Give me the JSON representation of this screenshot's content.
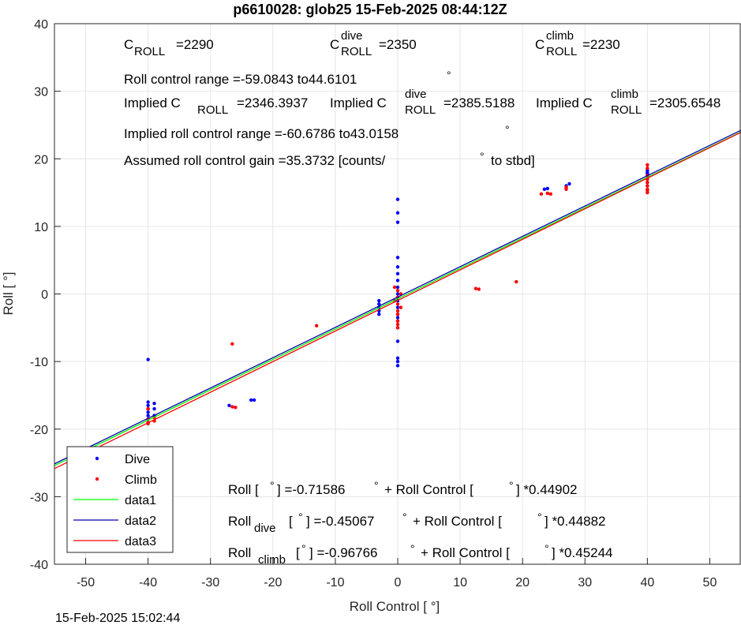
{
  "chart_data": {
    "type": "scatter",
    "title": "p6610028: glob25 15-Feb-2025 08:44:12Z",
    "x_label": "Roll Control [ °]",
    "y_label": "Roll [ °]",
    "footer": "15-Feb-2025 15:02:44",
    "xlim": [
      -55,
      55
    ],
    "ylim": [
      -40,
      40
    ],
    "xticks": [
      -50,
      -40,
      -30,
      -20,
      -10,
      0,
      10,
      20,
      30,
      40,
      50
    ],
    "yticks": [
      -40,
      -30,
      -20,
      -10,
      0,
      10,
      20,
      30,
      40
    ],
    "grid": true,
    "legend": "lower left",
    "series": [
      {
        "name": "Dive",
        "color": "#0000ff",
        "style": "marker",
        "x": [
          -40,
          -40,
          -40,
          -40,
          -40,
          -40,
          -40,
          -39,
          -39,
          -39,
          -27,
          -23.5,
          -23,
          -3,
          -3,
          -3,
          -3,
          -3,
          0,
          0,
          0,
          0,
          0,
          0,
          0,
          0,
          0,
          0,
          0,
          0,
          0,
          0,
          0,
          0,
          0,
          0,
          0,
          23.5,
          24,
          27,
          27.5,
          40,
          40,
          40,
          40,
          40,
          40,
          40
        ],
        "values": [
          -9.7,
          -16,
          -16.5,
          -17,
          -17.5,
          -18,
          -18.5,
          -16.2,
          -17,
          -18,
          -16.5,
          -15.7,
          -15.7,
          -1,
          -1.5,
          -2,
          -2.5,
          -3,
          14,
          12,
          10.6,
          5.4,
          4,
          3,
          2,
          1,
          0,
          -1,
          -2,
          -3,
          -3.5,
          -4,
          -5,
          -7,
          -9.5,
          -10,
          -10.6,
          15.5,
          15.6,
          16,
          16.3,
          18.3,
          18,
          17.5,
          17,
          16.5,
          16,
          17.8
        ]
      },
      {
        "name": "Climb",
        "color": "#ff0000",
        "style": "marker",
        "x": [
          -40,
          -40,
          -40,
          -40,
          -39,
          -39,
          -26.5,
          -26.5,
          -26,
          -13,
          -0.5,
          0,
          0.5,
          0,
          -0.5,
          0,
          0.5,
          0,
          0,
          0,
          0,
          0,
          12.5,
          13,
          19,
          23,
          24,
          24.5,
          27,
          27,
          40,
          40,
          40,
          40,
          40,
          40,
          40,
          40,
          40
        ],
        "values": [
          -19.2,
          -19,
          -18.5,
          -17,
          -18.8,
          -18.3,
          -7.4,
          -16.7,
          -16.8,
          -4.7,
          1,
          0.5,
          0,
          -0.5,
          -1,
          -1.5,
          -2,
          -2.5,
          -3,
          -4,
          -4.5,
          -5,
          0.8,
          0.7,
          1.8,
          14.8,
          14.9,
          14.8,
          15.5,
          15.8,
          19.1,
          18.6,
          17.5,
          17,
          16.5,
          16,
          15.5,
          15,
          15.3
        ]
      },
      {
        "name": "data1",
        "color": "#00ff00",
        "style": "line",
        "x": [
          -55,
          55
        ],
        "values": [
          -25.41,
          23.98
        ]
      },
      {
        "name": "data2",
        "color": "#0000aa",
        "style": "line",
        "x": [
          -55,
          55
        ],
        "values": [
          -25.14,
          24.23
        ]
      },
      {
        "name": "data3",
        "color": "#ff0000",
        "style": "line",
        "x": [
          -55,
          55
        ],
        "values": [
          -25.85,
          23.92
        ]
      }
    ],
    "annotations": [
      [
        {
          "t": "C"
        },
        {
          "sub": "ROLL"
        },
        {
          "t": "=2290"
        }
      ],
      [
        {
          "t": "C"
        },
        {
          "sup": "dive",
          "sub": "ROLL"
        },
        {
          "t": "=2350"
        }
      ],
      [
        {
          "t": "C"
        },
        {
          "sup": "climb",
          "sub": "ROLL"
        },
        {
          "t": "=2230"
        }
      ],
      [
        {
          "t": "Roll control range =-59.0843 to44.6101"
        },
        {
          "deg": "°"
        }
      ],
      [
        {
          "t": "Implied C"
        },
        {
          "sub": "ROLL"
        },
        {
          "t": "=2346.3937"
        }
      ],
      [
        {
          "t": "Implied C"
        },
        {
          "sup": "dive",
          "sub": "ROLL"
        },
        {
          "t": "=2385.5188"
        }
      ],
      [
        {
          "t": "Implied C"
        },
        {
          "sup": "climb",
          "sub": "ROLL"
        },
        {
          "t": "=2305.6548"
        }
      ],
      [
        {
          "t": "Implied roll control range =-60.6786 to43.0158"
        },
        {
          "deg": "°"
        }
      ],
      [
        {
          "t": "Assumed roll control gain =35.3732 [counts/"
        },
        {
          "deg": "°"
        },
        {
          "t": "to stbd]"
        }
      ],
      [
        {
          "t": "Roll ["
        },
        {
          "deg": "°"
        },
        {
          "t": "] =-0.71586"
        },
        {
          "deg": "°"
        },
        {
          "t": "+ Roll Control ["
        },
        {
          "deg": "°"
        },
        {
          "t": "] *0.44902"
        }
      ],
      [
        {
          "t": "Roll"
        },
        {
          "sub": "dive"
        },
        {
          "t": "["
        },
        {
          "deg": "°"
        },
        {
          "t": "] =-0.45067"
        },
        {
          "deg": "°"
        },
        {
          "t": "+ Roll Control ["
        },
        {
          "deg": "°"
        },
        {
          "t": "] *0.44882"
        }
      ],
      [
        {
          "t": "Roll"
        },
        {
          "sub": "climb"
        },
        {
          "t": "["
        },
        {
          "deg": "°"
        },
        {
          "t": "] =-0.96766"
        },
        {
          "deg": "°"
        },
        {
          "t": "+ Roll Control ["
        },
        {
          "deg": "°"
        },
        {
          "t": "] *0.45244"
        }
      ]
    ]
  }
}
